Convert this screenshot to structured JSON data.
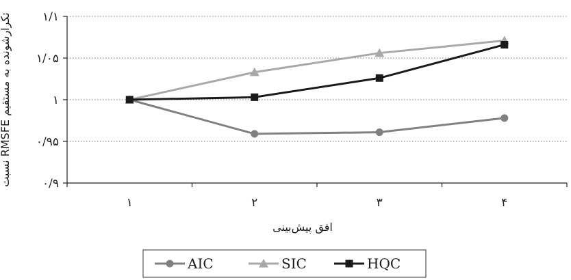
{
  "chart_data": {
    "type": "line",
    "categories": [
      "۱",
      "۲",
      "۳",
      "۴"
    ],
    "x": [
      1,
      2,
      3,
      4
    ],
    "ylabel": "نسبت RMSFE تکرارشونده به مستقیم",
    "xlabel": "افق پیش‌بینی",
    "ylim": [
      0.9,
      1.1
    ],
    "yticks": [
      0.9,
      0.95,
      1,
      1.05,
      1.1
    ],
    "ytick_labels": [
      "۰/۹",
      "۰/۹۵",
      "۱",
      "۱/۰۵",
      "۱/۱"
    ],
    "grid": "horizontal dotted",
    "legend_position": "bottom",
    "series": [
      {
        "name": "AIC",
        "values": [
          1.0,
          0.959,
          0.961,
          0.978
        ],
        "color": "#808080",
        "marker": "circle"
      },
      {
        "name": "SIC",
        "values": [
          1.0,
          1.033,
          1.056,
          1.071
        ],
        "color": "#a9a9a9",
        "marker": "triangle"
      },
      {
        "name": "HQC",
        "values": [
          1.0,
          1.003,
          1.026,
          1.066
        ],
        "color": "#1a1a1a",
        "marker": "square"
      }
    ]
  }
}
